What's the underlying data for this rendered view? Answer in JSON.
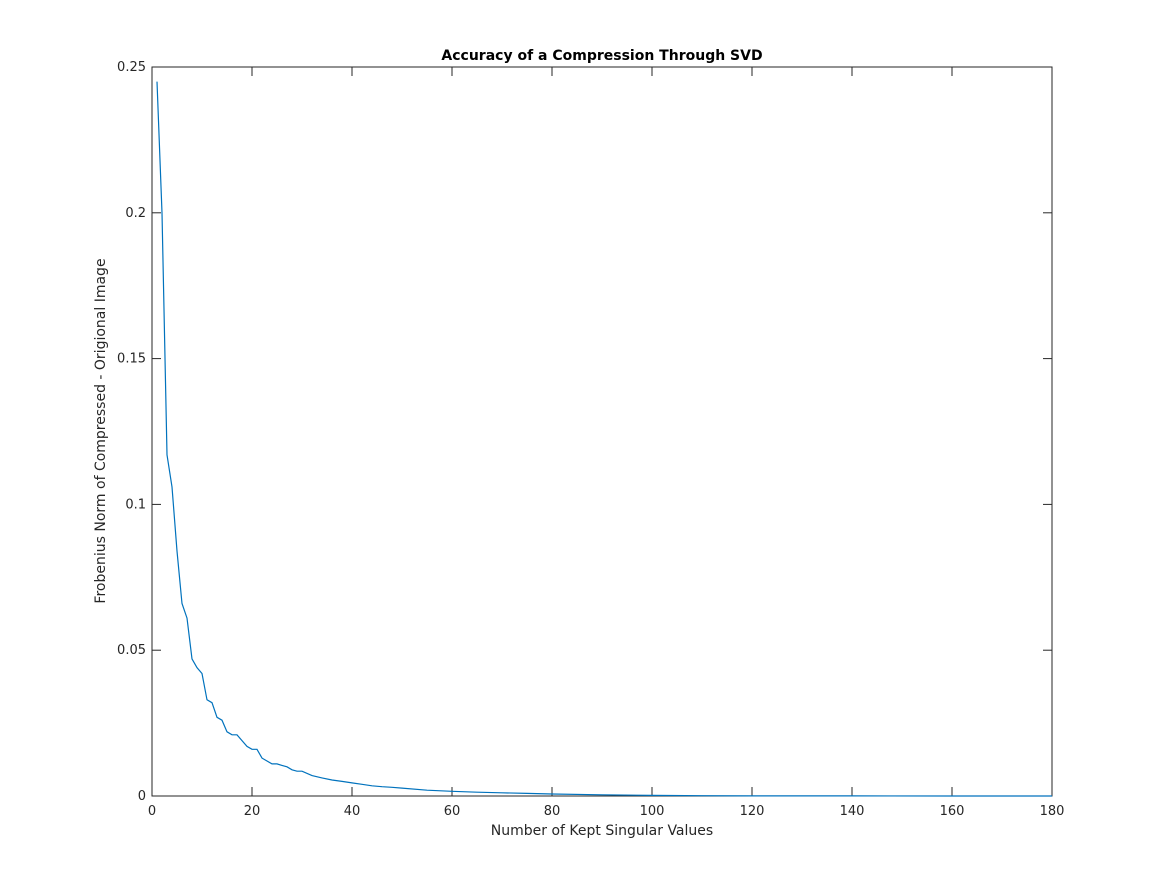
{
  "chart_data": {
    "type": "line",
    "title": "Accuracy of a Compression Through SVD",
    "xlabel": "Number of Kept Singular Values",
    "ylabel": "Frobenius Norm of Compressed - Origional Image",
    "xlim": [
      0,
      180
    ],
    "ylim": [
      0,
      0.25
    ],
    "xticks": [
      0,
      20,
      40,
      60,
      80,
      100,
      120,
      140,
      160,
      180
    ],
    "xtick_labels": [
      "0",
      "20",
      "40",
      "60",
      "80",
      "100",
      "120",
      "140",
      "160",
      "180"
    ],
    "yticks": [
      0,
      0.05,
      0.1,
      0.15,
      0.2,
      0.25
    ],
    "ytick_labels": [
      "0",
      "0.05",
      "0.1",
      "0.15",
      "0.2",
      "0.25"
    ],
    "grid": false,
    "series": [
      {
        "color": "#0072BD",
        "x": [
          1,
          2,
          3,
          4,
          5,
          6,
          7,
          8,
          9,
          10,
          11,
          12,
          13,
          14,
          15,
          16,
          17,
          18,
          19,
          20,
          21,
          22,
          23,
          24,
          25,
          26,
          27,
          28,
          29,
          30,
          32,
          34,
          36,
          38,
          40,
          42,
          44,
          46,
          48,
          50,
          55,
          60,
          65,
          70,
          75,
          80,
          90,
          100,
          110,
          120,
          140,
          160,
          180
        ],
        "y": [
          0.245,
          0.2,
          0.117,
          0.106,
          0.084,
          0.066,
          0.061,
          0.047,
          0.044,
          0.042,
          0.033,
          0.032,
          0.027,
          0.026,
          0.022,
          0.021,
          0.021,
          0.019,
          0.017,
          0.016,
          0.016,
          0.013,
          0.012,
          0.011,
          0.011,
          0.0105,
          0.01,
          0.009,
          0.0085,
          0.0085,
          0.007,
          0.0062,
          0.0055,
          0.005,
          0.0045,
          0.004,
          0.0035,
          0.0032,
          0.003,
          0.0027,
          0.002,
          0.0016,
          0.0013,
          0.0011,
          0.0009,
          0.0007,
          0.0004,
          0.0002,
          0.0001,
          5e-05,
          2e-05,
          1e-05,
          0.0
        ]
      }
    ]
  }
}
